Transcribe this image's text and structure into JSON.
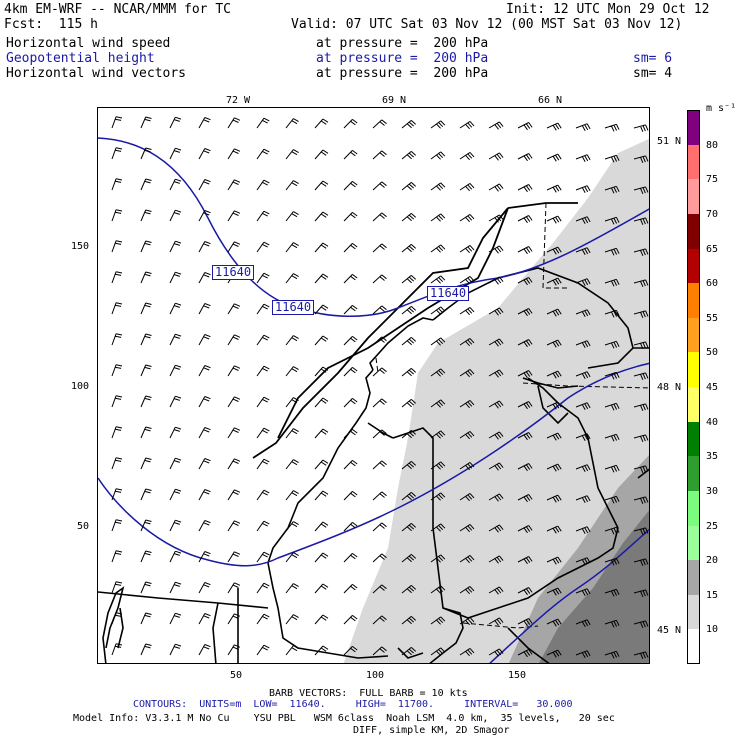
{
  "header": {
    "model": "4km EM-WRF -- NCAR/MMM for TC",
    "init": "Init: 12 UTC Mon 29 Oct 12",
    "fcst": "Fcst:  115 h",
    "valid": "Valid: 07 UTC Sat 03 Nov 12 (00 MST Sat 03 Nov 12)"
  },
  "fields": [
    {
      "name": "Horizontal wind speed",
      "level": "at pressure =  200 hPa",
      "sm": ""
    },
    {
      "name": "Geopotential height",
      "level": "at pressure =  200 hPa",
      "sm": "sm= 6"
    },
    {
      "name": "Horizontal wind vectors",
      "level": "at pressure =  200 hPa",
      "sm": "sm= 4"
    }
  ],
  "map": {
    "top_lon_labels": [
      "72 W",
      "69 N",
      "66 N"
    ],
    "right_lat_labels": [
      "51 N",
      "48 N",
      "45 N"
    ],
    "left_axis_labels": [
      "150",
      "100",
      "50"
    ],
    "bottom_axis_labels": [
      "50",
      "100",
      "150"
    ],
    "contour_labels": [
      "11640",
      "11640",
      "11640"
    ],
    "colors": {
      "light_gray": "#d9d9d9",
      "mid_gray": "#a6a6a6",
      "dark_gray": "#7a7a7a",
      "contour": "#1a1aa6"
    }
  },
  "colorbar": {
    "units": "m s⁻¹",
    "levels": [
      "80",
      "75",
      "70",
      "65",
      "60",
      "55",
      "50",
      "45",
      "40",
      "35",
      "30",
      "25",
      "20",
      "15",
      "10"
    ],
    "colors": [
      "#800080",
      "#ff6f6f",
      "#ff9b9b",
      "#800000",
      "#b30000",
      "#ff7f00",
      "#ffa020",
      "#ffff00",
      "#ffff66",
      "#008000",
      "#2e9e2e",
      "#7cfc7c",
      "#9aff9a",
      "#a6a6a6",
      "#d9d9d9",
      "#ffffff"
    ]
  },
  "footer": {
    "barb": "BARB VECTORS:  FULL BARB = 10 kts",
    "contours": "CONTOURS:  UNITS=m  LOW=  11640.     HIGH=  11700.     INTERVAL=   30.000",
    "model_info": "Model Info: V3.3.1 M No Cu    YSU PBL   WSM 6class  Noah LSM  4.0 km,  35 levels,   20 sec",
    "diff": "DIFF, simple KM, 2D Smagor"
  }
}
